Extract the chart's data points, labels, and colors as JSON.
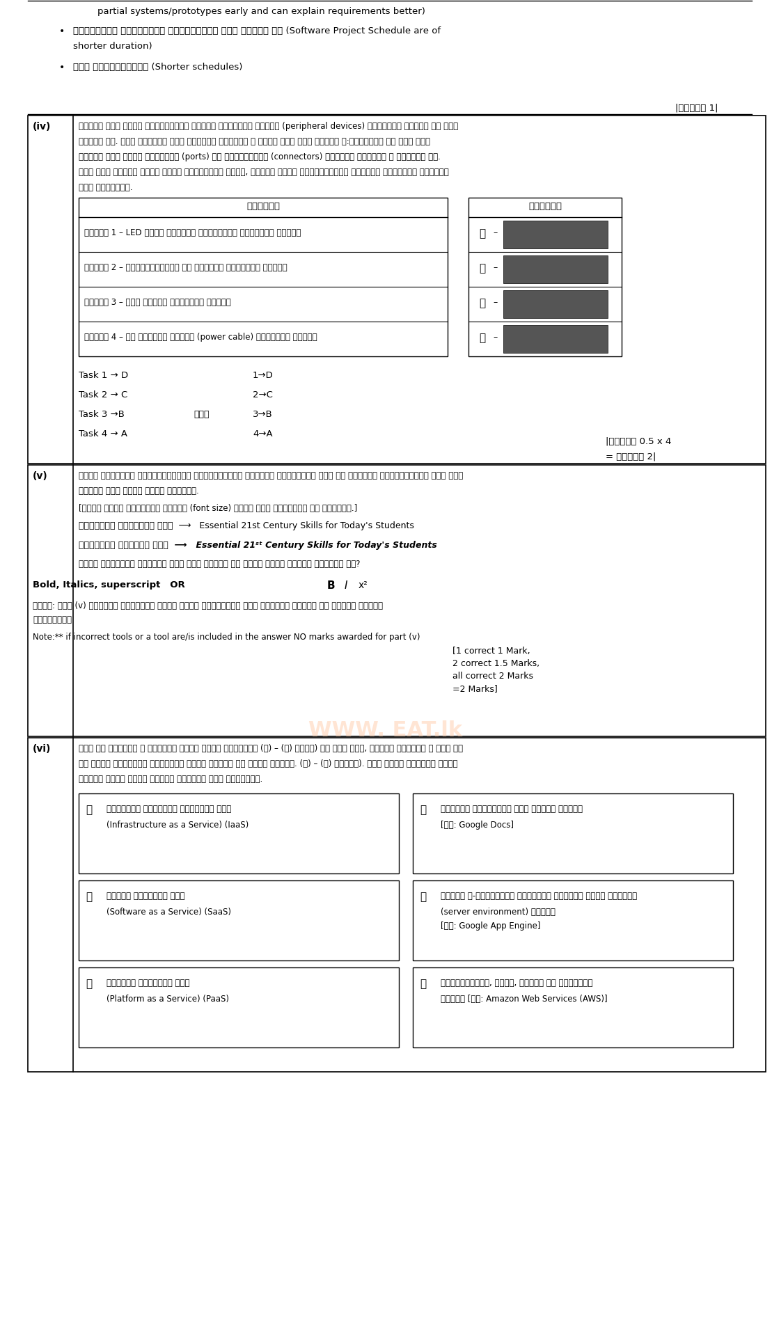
{
  "bg_color": "#ffffff",
  "border_color": "#000000",
  "text_color": "#000000",
  "page_width": 11.09,
  "page_height": 18.99,
  "top_section": {
    "lines": [
      "partial systems/prototypes early and can explain requirements better)",
      "•  මූල්කාංග ව්‍යාපාරි කාර්යසටහන කන් කාලින වේ (Software Project Schedule are of shorter duration)",
      "•  කන් කාර්යසටහන් (Shorter schedules)"
    ]
  },
  "mark_top": "|ලකුණු 1|",
  "section_iv_label": "(iv)",
  "section_iv_text1": "මිලදී ගත් ශ්‍මේ පරිඝණකයකට විවිධ පර්යන්ත උපාංග (peripheral devices) සම්බන්ධ කිරීම සඳ වෙන",
  "section_iv_text2": "පැවරී ඇත. පහත පෙන්වා ඇති කාර්යය හිරුරැ ළ සඳහා කළු ශූය කාර්ය ල:සිස්ශයන කර ඇති අනර",
  "section_iv_text3": "හාවිත කළූ ශූශු ශාකවෙනි (ports) හෝ සම්බන්දීක (connectors) මෙමෙවී හිරුරැ ළ පෙන්වා ඇත.",
  "section_iv_text4": "එක් එක් කාර්ය සඳහා අදාළ කොළවේනිය හළූන, කාර්ය ළංකය ශ්‍යිදියෙන් ශාළෙපන කොළවේනි ලේඛිලය",
  "section_iv_text5": "ලිය දක්වන්න.",
  "table_header_left": "කාර්යය",
  "table_header_right": "ශොලෙවී",
  "table_rows": [
    "කාර්ය 1 – LED හිරය පද්ධති ඒකාබද්ධව සම්බන්ධ කිරීම",
    "කාර්ය 2 – ශශූලුල්වරුල හා ශ්‍ශිශය සම්බන්ධ කිරීම",
    "කාර්ය 3 – රාල ශ්‍ශශය සම්බන්ධ හිරීම",
    "කාර්ය 4 – බල සැරඵළ් ශ්‍ශශය (power cable) සම්බන්ධ කිරීම"
  ],
  "connector_labels": [
    "Ⓐ",
    "Ⓑ",
    "Ⓒ",
    "Ⓓ"
  ],
  "answers_left": [
    "Task 1 → D",
    "Task 2 → C",
    "Task 3 →B",
    "Task 4 → A"
  ],
  "answers_mid": [
    "",
    "",
    "හෝ්",
    ""
  ],
  "answers_right": [
    "1→D",
    "2→C",
    "3→B",
    "4→A"
  ],
  "mark_iv": "|ලකුණු 0.5 x 4\n= ලකුණු 2|",
  "section_v_label": "(v)",
  "section_v_text1": "වදන් සැකසුළ් මෘදුකාංගයක් හාවිනශයෙන් හැදිලේ ශ්‍ශශලිමව ශෙර සහ හැදිලේ ශ්‍ශශලිමේෝ ශූශ පශශ",
  "section_v_text2": "ශෙශොා ඇති වාකය බෙෝ සළකන්න.",
  "section_v_note": "[මල්ම ඉාකය ඉෝෝකේය කිරිම (font size) වේන්‍ කර් හටාමිටි ඉි සලකන්න.]",
  "section_v_line1_left": "හේන්‍මන් හාසිේමට හෙර ⟶",
  "section_v_line1_right": "Essential 21st Century Skills for Today's Students",
  "section_v_line2_left": "හේන්‍මන් හාසිේම හෙර ⟶",
  "section_v_line2_right": "Essential 21st Century Skills for Today's Students",
  "section_v_question": "ෆර්කය හේන්‍මන් හාසිේම සරැ කරය අවශ්‍ය ළන වදන් සකසන මොලම ලේමන්ො දා?",
  "bold_italics_line": "Bold, Italics, superscript   OR",
  "section_v_note2": "සටහන: මැම (v) කොටසේස පිලිවර් සදහා වරදි මැවලම්ක් හෝ් මැවලම් ආකුල් කර ආක්නම ලකුණු",
  "section_v_note3": "හෛලාලේඉි",
  "note_star": "Note:** if incorrect tools or a tool are/is included in the answer NO marks awarded for part (v)",
  "note_marks": "[1 correct 1 Mark,\n2 correct 1.5 Marks,\nall correct 2 Marks\n=2 Marks]",
  "section_vi_label": "(vi)",
  "section_vi_text1": "පශශ ළ් හිරුරැ ළ ළලකුණු ශූශැ සේවා හුහුන්ො (Ⓐ) – (හ) ලේපේ) දැ ඇති අනර, දකුණු හිරුරැ ළ ආල් අ්",
  "section_vi_text2": "එ් වර්ක ශෝ්ය්ක් ල඼න්දේන සකුස හිසාර කර ආකුර කෙරේල. (⒯) – (Ⓔ) ලේපේල). මැම හිරු දකුන්ෛ අ෎තන",
  "section_vi_text3": "හොලේන අදාල ළෛේන ළොලේන මැවින් ලිය දක්වන්න.",
  "vi_boxes": [
    {
      "label": "Ⓐ",
      "title": "යාත්යාල පහසුකම් සේවාවක් ලේස",
      "subtitle": "(Infrastructure as a Service) (IaaS)"
    },
    {
      "label": "Ⓑ",
      "title": "මොලම සේවාවක් ලේස",
      "subtitle": "(Software as a Service) (SaaS)"
    },
    {
      "label": "Ⓒ",
      "title": "වේදියා සේවාවක් ලේස",
      "subtitle": "(Platform as a Service) (PaaS)"
    },
    {
      "label": "⒯",
      "title": "වලකුලු පරිපාලනය කලා මොලම සගපසේ",
      "subtitle": "[දා: Google Docs]"
    },
    {
      "label": "⒰",
      "title": "මොලම ස-වර්ඞිතයස සලපාලනය අළවශ්‍ය සේවා පරිසරය",
      "subtitle": "(server environment) සාපශේ\n[දා: Google App Engine]"
    },
    {
      "label": "Ⓔ",
      "title": "සේවායාක්සි, රුලු, අවශ්‍ය ළන පහසුකම්",
      "subtitle": "සාපශේ [දා: Amazon Web Services (AWS)]"
    }
  ]
}
